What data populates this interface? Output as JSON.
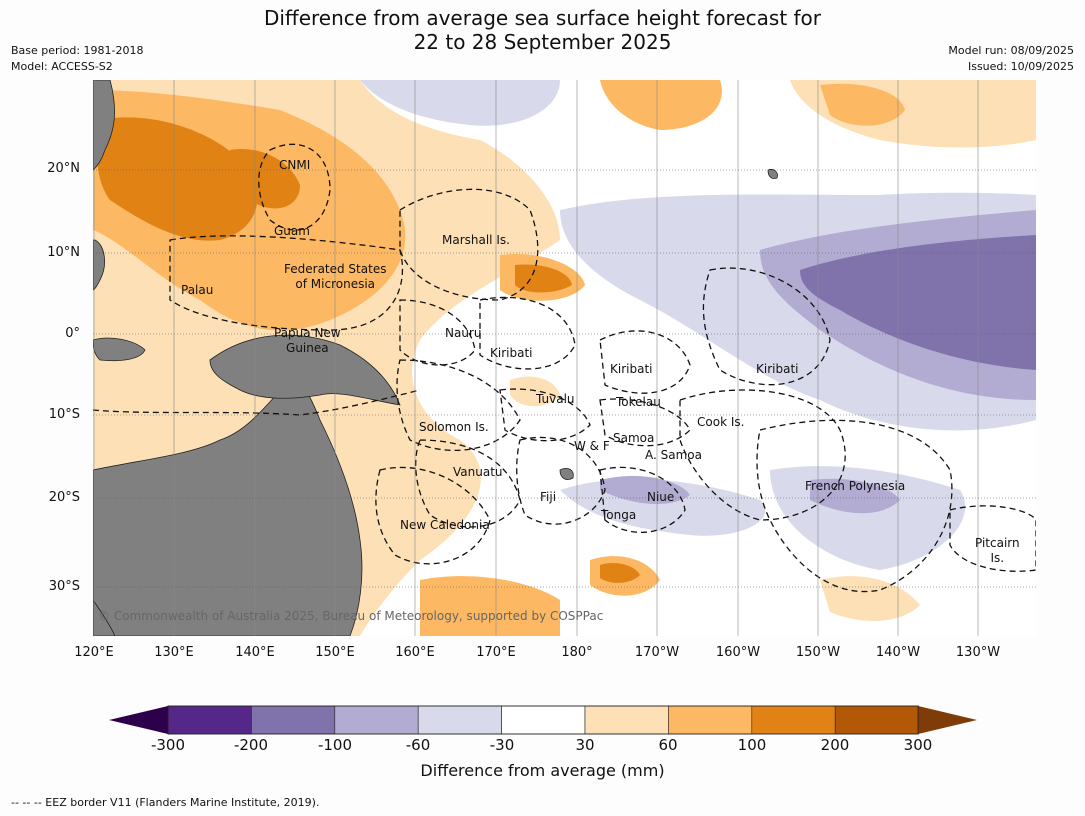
{
  "header": {
    "title_line1": "Difference from average sea surface height forecast for",
    "title_line2": "22 to 28 September 2025",
    "base_period": "Base period: 1981-2018",
    "model": "Model: ACCESS-S2",
    "model_run": "Model run: 08/09/2025",
    "issued": "Issued: 10/09/2025"
  },
  "map": {
    "lat_labels": [
      "20°N",
      "10°N",
      "0°",
      "10°S",
      "20°S",
      "30°S"
    ],
    "lon_labels": [
      "120°E",
      "130°E",
      "140°E",
      "150°E",
      "160°E",
      "170°E",
      "180°",
      "170°W",
      "160°W",
      "150°W",
      "140°W",
      "130°W"
    ],
    "regions": {
      "cnmi": "CNMI",
      "guam": "Guam",
      "marshall": "Marshall Is.",
      "fsm": "Federated States\nof Micronesia",
      "palau": "Palau",
      "png": "Papua New\nGuinea",
      "nauru": "Nauru",
      "kiribati_w": "Kiribati",
      "kiribati_c": "Kiribati",
      "kiribati_e": "Kiribati",
      "tuvalu": "Tuvalu",
      "tokelau": "Tokelau",
      "solomon": "Solomon Is.",
      "samoa": "Samoa",
      "wf": "W & F",
      "asamoa": "A. Samoa",
      "cook": "Cook Is.",
      "vanuatu": "Vanuatu",
      "fiji": "Fiji",
      "niue": "Niue",
      "tonga": "Tonga",
      "fp": "French Polynesia",
      "newcal": "New Caledonia",
      "pitcairn": "Pitcairn\nIs."
    },
    "credit": "© Commonwealth of Australia 2025, Bureau of Meteorology, supported by COSPPac",
    "land_color": "#808080"
  },
  "colorbar": {
    "ticks": [
      "-300",
      "-200",
      "-100",
      "-60",
      "-30",
      "30",
      "60",
      "100",
      "200",
      "300"
    ],
    "colors": [
      "#2d004b",
      "#542788",
      "#8073ac",
      "#b2abd2",
      "#d8daeb",
      "#ffffff",
      "#fee0b6",
      "#fdb863",
      "#e08214",
      "#b35806",
      "#7f3b08"
    ],
    "label": "Difference from average (mm)"
  },
  "footnote": "--  --  -- EEZ border V11 (Flanders Marine Institute, 2019)."
}
